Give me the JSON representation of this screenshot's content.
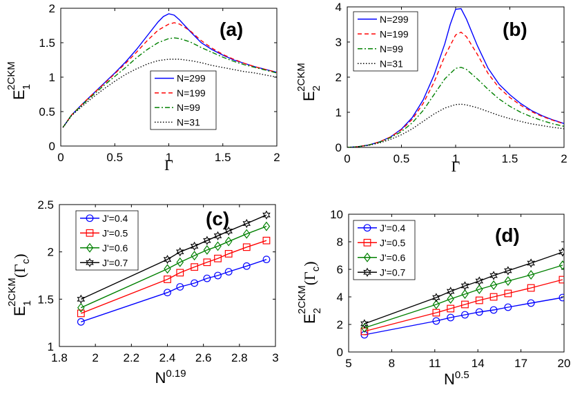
{
  "chart_data": [
    {
      "panel_label": "(a)",
      "type": "line",
      "xlabel": "Γ",
      "ylabel_main": "E",
      "ylabel_sup": "2CKM",
      "ylabel_sub": "1",
      "xlim": [
        0,
        2
      ],
      "ylim": [
        0,
        2
      ],
      "xticks": [
        0,
        0.5,
        1,
        1.5,
        2
      ],
      "xtick_labels": [
        "0",
        "0.5",
        "1",
        "1.5",
        "2"
      ],
      "yticks": [
        0,
        0.5,
        1,
        1.5,
        2
      ],
      "ytick_labels": [
        "0",
        "0.5",
        "1",
        "1.5",
        "2"
      ],
      "legend_position": "center-right",
      "series": [
        {
          "name": "N=299",
          "color": "#0000ff",
          "dash": "solid",
          "x": [
            0.02,
            0.1,
            0.2,
            0.3,
            0.4,
            0.5,
            0.6,
            0.7,
            0.8,
            0.9,
            0.95,
            1.0,
            1.05,
            1.1,
            1.2,
            1.3,
            1.4,
            1.5,
            1.6,
            1.7,
            1.8,
            1.9,
            2.0
          ],
          "y": [
            0.27,
            0.45,
            0.61,
            0.76,
            0.91,
            1.06,
            1.22,
            1.4,
            1.6,
            1.8,
            1.88,
            1.92,
            1.9,
            1.83,
            1.66,
            1.5,
            1.4,
            1.32,
            1.25,
            1.2,
            1.15,
            1.11,
            1.07
          ]
        },
        {
          "name": "N=199",
          "color": "#ff0000",
          "dash": "dashed",
          "x": [
            0.02,
            0.1,
            0.2,
            0.3,
            0.4,
            0.5,
            0.6,
            0.7,
            0.8,
            0.9,
            1.0,
            1.05,
            1.1,
            1.2,
            1.3,
            1.4,
            1.5,
            1.6,
            1.7,
            1.8,
            1.9,
            2.0
          ],
          "y": [
            0.27,
            0.45,
            0.61,
            0.76,
            0.9,
            1.05,
            1.2,
            1.36,
            1.53,
            1.68,
            1.77,
            1.79,
            1.77,
            1.67,
            1.53,
            1.42,
            1.33,
            1.26,
            1.2,
            1.15,
            1.11,
            1.07
          ]
        },
        {
          "name": "N=99",
          "color": "#008000",
          "dash": "dashdot",
          "x": [
            0.02,
            0.1,
            0.2,
            0.3,
            0.4,
            0.5,
            0.6,
            0.7,
            0.8,
            0.9,
            1.0,
            1.05,
            1.1,
            1.2,
            1.3,
            1.4,
            1.5,
            1.6,
            1.7,
            1.8,
            1.9,
            2.0
          ],
          "y": [
            0.27,
            0.45,
            0.6,
            0.74,
            0.88,
            1.01,
            1.14,
            1.28,
            1.4,
            1.5,
            1.56,
            1.57,
            1.56,
            1.51,
            1.43,
            1.36,
            1.29,
            1.23,
            1.18,
            1.14,
            1.1,
            1.06
          ]
        },
        {
          "name": "N=31",
          "color": "#000000",
          "dash": "dotted",
          "x": [
            0.02,
            0.1,
            0.2,
            0.3,
            0.4,
            0.5,
            0.6,
            0.7,
            0.8,
            0.9,
            1.0,
            1.1,
            1.2,
            1.3,
            1.4,
            1.5,
            1.6,
            1.7,
            1.8,
            1.9,
            2.0
          ],
          "y": [
            0.27,
            0.44,
            0.58,
            0.71,
            0.83,
            0.94,
            1.04,
            1.12,
            1.19,
            1.24,
            1.26,
            1.26,
            1.24,
            1.21,
            1.17,
            1.14,
            1.11,
            1.08,
            1.06,
            1.03,
            1.0
          ]
        }
      ]
    },
    {
      "panel_label": "(b)",
      "type": "line",
      "xlabel": "Γ",
      "ylabel_main": "E",
      "ylabel_sup": "2CKM",
      "ylabel_sub": "2",
      "xlim": [
        0,
        2
      ],
      "ylim": [
        0,
        4
      ],
      "xticks": [
        0,
        0.5,
        1,
        1.5,
        2
      ],
      "xtick_labels": [
        "0",
        "0.5",
        "1",
        "1.5",
        "2"
      ],
      "yticks": [
        0,
        1,
        2,
        3,
        4
      ],
      "ytick_labels": [
        "0",
        "1",
        "2",
        "3",
        "4"
      ],
      "legend_position": "top-left",
      "series": [
        {
          "name": "N=299",
          "color": "#0000ff",
          "dash": "solid",
          "x": [
            0,
            0.1,
            0.2,
            0.3,
            0.4,
            0.5,
            0.6,
            0.7,
            0.8,
            0.9,
            0.95,
            1.0,
            1.05,
            1.1,
            1.2,
            1.3,
            1.4,
            1.5,
            1.6,
            1.7,
            1.8,
            1.9,
            2.0
          ],
          "y": [
            0,
            0.02,
            0.07,
            0.16,
            0.3,
            0.52,
            0.85,
            1.35,
            2.05,
            2.95,
            3.5,
            3.93,
            3.95,
            3.65,
            2.9,
            2.25,
            1.8,
            1.5,
            1.25,
            1.05,
            0.9,
            0.78,
            0.68
          ]
        },
        {
          "name": "N=199",
          "color": "#ff0000",
          "dash": "dashed",
          "x": [
            0,
            0.1,
            0.2,
            0.3,
            0.4,
            0.5,
            0.6,
            0.7,
            0.8,
            0.9,
            1.0,
            1.05,
            1.1,
            1.2,
            1.3,
            1.4,
            1.5,
            1.6,
            1.7,
            1.8,
            1.9,
            2.0
          ],
          "y": [
            0,
            0.02,
            0.07,
            0.16,
            0.3,
            0.5,
            0.8,
            1.25,
            1.85,
            2.6,
            3.2,
            3.28,
            3.15,
            2.65,
            2.1,
            1.7,
            1.42,
            1.2,
            1.02,
            0.88,
            0.77,
            0.67
          ]
        },
        {
          "name": "N=99",
          "color": "#008000",
          "dash": "dashdot",
          "x": [
            0,
            0.1,
            0.2,
            0.3,
            0.4,
            0.5,
            0.6,
            0.7,
            0.8,
            0.9,
            1.0,
            1.05,
            1.1,
            1.2,
            1.3,
            1.4,
            1.5,
            1.6,
            1.7,
            1.8,
            1.9,
            2.0
          ],
          "y": [
            0,
            0.02,
            0.07,
            0.15,
            0.28,
            0.45,
            0.7,
            1.05,
            1.5,
            1.95,
            2.25,
            2.28,
            2.22,
            1.95,
            1.65,
            1.38,
            1.17,
            1.0,
            0.87,
            0.76,
            0.67,
            0.6
          ]
        },
        {
          "name": "N=31",
          "color": "#000000",
          "dash": "dotted",
          "x": [
            0,
            0.1,
            0.2,
            0.3,
            0.4,
            0.5,
            0.6,
            0.7,
            0.8,
            0.9,
            1.0,
            1.05,
            1.1,
            1.2,
            1.3,
            1.4,
            1.5,
            1.6,
            1.7,
            1.8,
            1.9,
            2.0
          ],
          "y": [
            0,
            0.02,
            0.06,
            0.13,
            0.23,
            0.36,
            0.53,
            0.74,
            0.95,
            1.12,
            1.22,
            1.23,
            1.21,
            1.13,
            1.02,
            0.91,
            0.82,
            0.74,
            0.67,
            0.62,
            0.57,
            0.53
          ]
        }
      ]
    },
    {
      "panel_label": "(c)",
      "type": "line",
      "xlabel_main": "N",
      "xlabel_sup": "0.19",
      "ylabel_main": "E",
      "ylabel_sup": "2CKM",
      "ylabel_sub": "1",
      "ylabel_arg": "(Γ",
      "ylabel_arg_sub": "c",
      "ylabel_arg_close": ")",
      "xlim": [
        1.8,
        3
      ],
      "ylim": [
        1,
        2.5
      ],
      "xticks": [
        1.8,
        2,
        2.2,
        2.4,
        2.6,
        2.8,
        3
      ],
      "xtick_labels": [
        "1.8",
        "2",
        "2.2",
        "2.4",
        "2.6",
        "2.8",
        "3"
      ],
      "yticks": [
        1,
        1.5,
        2,
        2.5
      ],
      "ytick_labels": [
        "1",
        "1.5",
        "2",
        "2.5"
      ],
      "legend_position": "top-left",
      "series": [
        {
          "name": "J'=0.4",
          "color": "#0000ff",
          "marker": "circle",
          "x": [
            1.92,
            2.4,
            2.47,
            2.55,
            2.62,
            2.68,
            2.74,
            2.84,
            2.95
          ],
          "y": [
            1.26,
            1.57,
            1.63,
            1.67,
            1.72,
            1.75,
            1.79,
            1.85,
            1.92
          ]
        },
        {
          "name": "J'=0.5",
          "color": "#ff0000",
          "marker": "square",
          "x": [
            1.92,
            2.4,
            2.47,
            2.55,
            2.62,
            2.68,
            2.74,
            2.84,
            2.95
          ],
          "y": [
            1.35,
            1.71,
            1.78,
            1.84,
            1.89,
            1.93,
            1.98,
            2.05,
            2.12
          ]
        },
        {
          "name": "J'=0.6",
          "color": "#008000",
          "marker": "diamond",
          "x": [
            1.92,
            2.4,
            2.47,
            2.55,
            2.62,
            2.68,
            2.74,
            2.84,
            2.95
          ],
          "y": [
            1.41,
            1.82,
            1.89,
            1.96,
            2.02,
            2.06,
            2.11,
            2.19,
            2.27
          ]
        },
        {
          "name": "J'=0.7",
          "color": "#000000",
          "marker": "hexagram",
          "x": [
            1.92,
            2.4,
            2.47,
            2.55,
            2.62,
            2.68,
            2.74,
            2.84,
            2.95
          ],
          "y": [
            1.5,
            1.92,
            2.0,
            2.06,
            2.12,
            2.17,
            2.22,
            2.3,
            2.39
          ]
        }
      ]
    },
    {
      "panel_label": "(d)",
      "type": "line",
      "xlabel_main": "N",
      "xlabel_sup": "0.5",
      "ylabel_main": "E",
      "ylabel_sup": "2CKM",
      "ylabel_sub": "2",
      "ylabel_arg": "(Γ",
      "ylabel_arg_sub": "c",
      "ylabel_arg_close": ")",
      "xlim": [
        5,
        20
      ],
      "ylim": [
        0,
        10
      ],
      "xticks": [
        5,
        8,
        11,
        14,
        17,
        20
      ],
      "xtick_labels": [
        "5",
        "8",
        "11",
        "14",
        "17",
        "20"
      ],
      "yticks": [
        0,
        2,
        4,
        6,
        8,
        10
      ],
      "ytick_labels": [
        "0",
        "2",
        "4",
        "6",
        "8",
        "10"
      ],
      "legend_position": "top-left",
      "series": [
        {
          "name": "J'=0.4",
          "color": "#0000ff",
          "marker": "circle",
          "x": [
            6.1,
            11.1,
            12.1,
            13.1,
            14.1,
            15.1,
            16.1,
            17.7,
            19.9
          ],
          "y": [
            1.25,
            2.25,
            2.5,
            2.7,
            2.9,
            3.05,
            3.25,
            3.55,
            3.95
          ]
        },
        {
          "name": "J'=0.5",
          "color": "#ff0000",
          "marker": "square",
          "x": [
            6.1,
            11.1,
            12.1,
            13.1,
            14.1,
            15.1,
            16.1,
            17.7,
            19.9
          ],
          "y": [
            1.5,
            2.85,
            3.15,
            3.45,
            3.75,
            4.0,
            4.25,
            4.65,
            5.25
          ]
        },
        {
          "name": "J'=0.6",
          "color": "#008000",
          "marker": "diamond",
          "x": [
            6.1,
            11.1,
            12.1,
            13.1,
            14.1,
            15.1,
            16.1,
            17.7,
            19.9
          ],
          "y": [
            1.75,
            3.45,
            3.85,
            4.2,
            4.55,
            4.85,
            5.15,
            5.6,
            6.3
          ]
        },
        {
          "name": "J'=0.7",
          "color": "#000000",
          "marker": "hexagram",
          "x": [
            6.1,
            11.1,
            12.1,
            13.1,
            14.1,
            15.1,
            16.1,
            17.7,
            19.9
          ],
          "y": [
            2.05,
            3.95,
            4.4,
            4.8,
            5.15,
            5.55,
            5.9,
            6.45,
            7.25
          ]
        }
      ]
    }
  ]
}
